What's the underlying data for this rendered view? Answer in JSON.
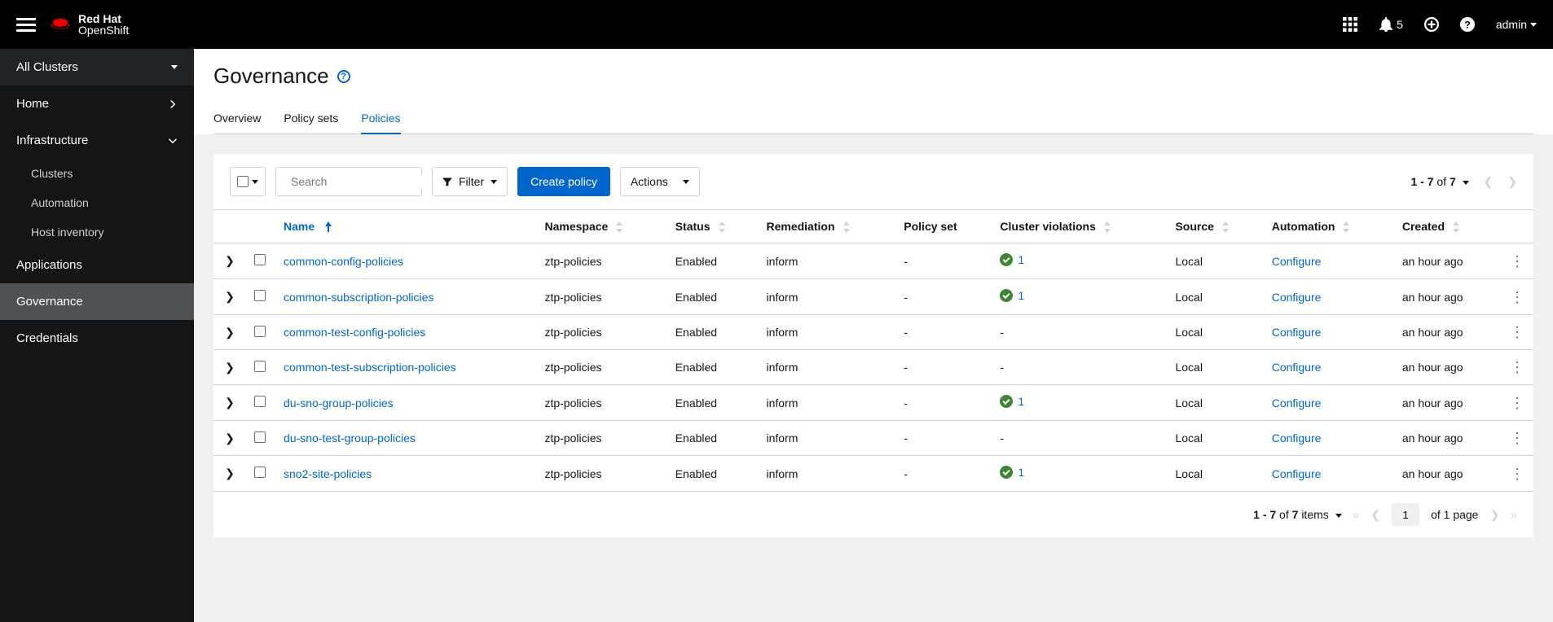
{
  "brand": {
    "line1": "Red Hat",
    "line2": "OpenShift"
  },
  "header": {
    "notification_count": "5",
    "user": "admin"
  },
  "sidebar": {
    "context": "All Clusters",
    "items": [
      {
        "label": "Home",
        "expandable": true
      },
      {
        "label": "Infrastructure",
        "expandable": true,
        "expanded": true,
        "children": [
          "Clusters",
          "Automation",
          "Host inventory"
        ]
      },
      {
        "label": "Applications"
      },
      {
        "label": "Governance",
        "active": true
      },
      {
        "label": "Credentials"
      }
    ]
  },
  "page": {
    "title": "Governance",
    "tabs": [
      "Overview",
      "Policy sets",
      "Policies"
    ],
    "active_tab": 2
  },
  "toolbar": {
    "search_placeholder": "Search",
    "filter_label": "Filter",
    "create_label": "Create policy",
    "actions_label": "Actions",
    "top_range": "1 - 7",
    "top_of": "of",
    "top_total": "7"
  },
  "table": {
    "columns": [
      "Name",
      "Namespace",
      "Status",
      "Remediation",
      "Policy set",
      "Cluster violations",
      "Source",
      "Automation",
      "Created"
    ],
    "sorted_col": 0,
    "rows": [
      {
        "name": "common-config-policies",
        "namespace": "ztp-policies",
        "status": "Enabled",
        "remediation": "inform",
        "policy_set": "-",
        "violations": "1",
        "source": "Local",
        "automation": "Configure",
        "created": "an hour ago"
      },
      {
        "name": "common-subscription-policies",
        "namespace": "ztp-policies",
        "status": "Enabled",
        "remediation": "inform",
        "policy_set": "-",
        "violations": "1",
        "source": "Local",
        "automation": "Configure",
        "created": "an hour ago"
      },
      {
        "name": "common-test-config-policies",
        "namespace": "ztp-policies",
        "status": "Enabled",
        "remediation": "inform",
        "policy_set": "-",
        "violations": "-",
        "source": "Local",
        "automation": "Configure",
        "created": "an hour ago"
      },
      {
        "name": "common-test-subscription-policies",
        "namespace": "ztp-policies",
        "status": "Enabled",
        "remediation": "inform",
        "policy_set": "-",
        "violations": "-",
        "source": "Local",
        "automation": "Configure",
        "created": "an hour ago"
      },
      {
        "name": "du-sno-group-policies",
        "namespace": "ztp-policies",
        "status": "Enabled",
        "remediation": "inform",
        "policy_set": "-",
        "violations": "1",
        "source": "Local",
        "automation": "Configure",
        "created": "an hour ago"
      },
      {
        "name": "du-sno-test-group-policies",
        "namespace": "ztp-policies",
        "status": "Enabled",
        "remediation": "inform",
        "policy_set": "-",
        "violations": "-",
        "source": "Local",
        "automation": "Configure",
        "created": "an hour ago"
      },
      {
        "name": "sno2-site-policies",
        "namespace": "ztp-policies",
        "status": "Enabled",
        "remediation": "inform",
        "policy_set": "-",
        "violations": "1",
        "source": "Local",
        "automation": "Configure",
        "created": "an hour ago"
      }
    ]
  },
  "pagination_bottom": {
    "range": "1 - 7",
    "of": "of",
    "total": "7",
    "items_label": "items",
    "page_input": "1",
    "page_suffix": "of 1 page"
  }
}
